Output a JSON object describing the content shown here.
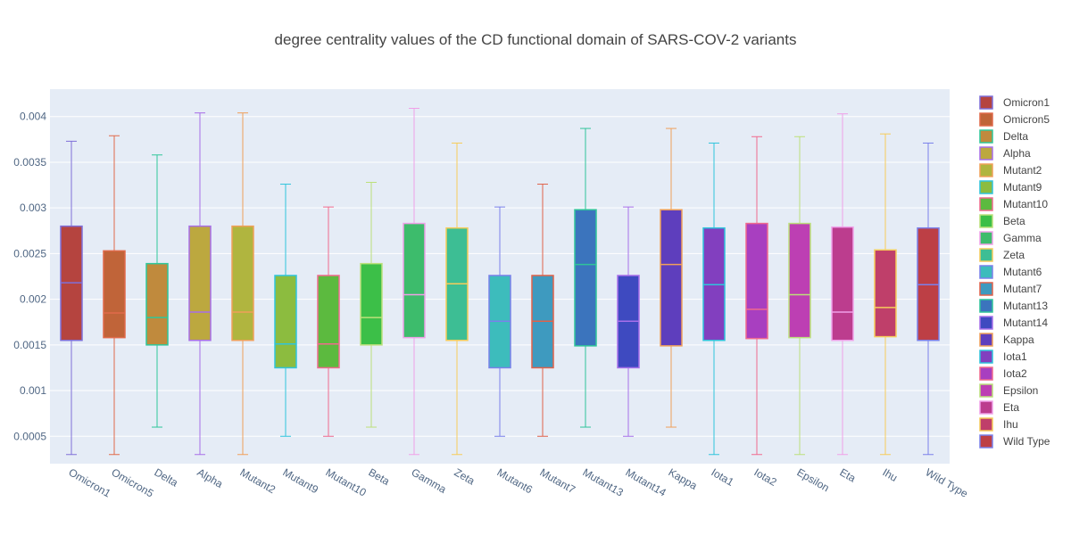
{
  "chart_data": {
    "type": "box",
    "title": "degree centrality values of the CD functional domain of SARS-COV-2 variants",
    "xlabel": "",
    "ylabel": "",
    "ylim": [
      0.0002,
      0.0043
    ],
    "y_ticks": [
      {
        "value": 0.0005,
        "label": "0.0005"
      },
      {
        "value": 0.001,
        "label": "0.001"
      },
      {
        "value": 0.0015,
        "label": "0.0015"
      },
      {
        "value": 0.002,
        "label": "0.002"
      },
      {
        "value": 0.0025,
        "label": "0.0025"
      },
      {
        "value": 0.003,
        "label": "0.003"
      },
      {
        "value": 0.0035,
        "label": "0.0035"
      },
      {
        "value": 0.004,
        "label": "0.004"
      }
    ],
    "grid": true,
    "legend_position": "right",
    "series": [
      {
        "name": "Omicron1",
        "min": 0.0003,
        "q1": 0.00155,
        "median": 0.00218,
        "q3": 0.0028,
        "max": 0.00373,
        "fill": "#b5443f",
        "line": "#7f6fd8"
      },
      {
        "name": "Omicron5",
        "min": 0.0003,
        "q1": 0.00158,
        "median": 0.00185,
        "q3": 0.00253,
        "max": 0.00379,
        "fill": "#c06439",
        "line": "#e06a4a"
      },
      {
        "name": "Delta",
        "min": 0.0006,
        "q1": 0.0015,
        "median": 0.0018,
        "q3": 0.00239,
        "max": 0.00358,
        "fill": "#c08a3d",
        "line": "#2fc79a"
      },
      {
        "name": "Alpha",
        "min": 0.0003,
        "q1": 0.00155,
        "median": 0.00186,
        "q3": 0.0028,
        "max": 0.00404,
        "fill": "#bca83f",
        "line": "#a86ee8"
      },
      {
        "name": "Mutant2",
        "min": 0.0003,
        "q1": 0.00155,
        "median": 0.00186,
        "q3": 0.0028,
        "max": 0.00404,
        "fill": "#b0b53f",
        "line": "#f0a05a"
      },
      {
        "name": "Mutant9",
        "min": 0.0005,
        "q1": 0.00125,
        "median": 0.00151,
        "q3": 0.00226,
        "max": 0.00326,
        "fill": "#8cbc3f",
        "line": "#2fc4dc"
      },
      {
        "name": "Mutant10",
        "min": 0.0005,
        "q1": 0.00125,
        "median": 0.00151,
        "q3": 0.00226,
        "max": 0.00301,
        "fill": "#5cba3f",
        "line": "#f06a8e"
      },
      {
        "name": "Beta",
        "min": 0.0006,
        "q1": 0.0015,
        "median": 0.0018,
        "q3": 0.00239,
        "max": 0.00328,
        "fill": "#3cbf48",
        "line": "#bce07a"
      },
      {
        "name": "Gamma",
        "min": 0.0003,
        "q1": 0.00158,
        "median": 0.00205,
        "q3": 0.00283,
        "max": 0.00409,
        "fill": "#3dbc6c",
        "line": "#f0a0e8"
      },
      {
        "name": "Zeta",
        "min": 0.0003,
        "q1": 0.00155,
        "median": 0.00217,
        "q3": 0.00278,
        "max": 0.00371,
        "fill": "#3dbe94",
        "line": "#f6cc5a"
      },
      {
        "name": "Mutant6",
        "min": 0.0005,
        "q1": 0.00125,
        "median": 0.00176,
        "q3": 0.00226,
        "max": 0.00301,
        "fill": "#3dbcbc",
        "line": "#7a80ea"
      },
      {
        "name": "Mutant7",
        "min": 0.0005,
        "q1": 0.00125,
        "median": 0.00176,
        "q3": 0.00226,
        "max": 0.00326,
        "fill": "#3e9abf",
        "line": "#e0624a"
      },
      {
        "name": "Mutant13",
        "min": 0.0006,
        "q1": 0.00149,
        "median": 0.00238,
        "q3": 0.00298,
        "max": 0.00387,
        "fill": "#3b74bd",
        "line": "#2fc49a"
      },
      {
        "name": "Mutant14",
        "min": 0.0005,
        "q1": 0.00125,
        "median": 0.00176,
        "q3": 0.00226,
        "max": 0.00301,
        "fill": "#3e4ac0",
        "line": "#a870ea"
      },
      {
        "name": "Kappa",
        "min": 0.0006,
        "q1": 0.00149,
        "median": 0.00238,
        "q3": 0.00298,
        "max": 0.00387,
        "fill": "#5e3ebd",
        "line": "#f0a05a"
      },
      {
        "name": "Iota1",
        "min": 0.0003,
        "q1": 0.00155,
        "median": 0.00216,
        "q3": 0.00278,
        "max": 0.00371,
        "fill": "#823fbf",
        "line": "#2fc4dc"
      },
      {
        "name": "Iota2",
        "min": 0.0003,
        "q1": 0.00157,
        "median": 0.00189,
        "q3": 0.00283,
        "max": 0.00378,
        "fill": "#a83fc0",
        "line": "#f06a8e"
      },
      {
        "name": "Epsilon",
        "min": 0.0003,
        "q1": 0.00158,
        "median": 0.00205,
        "q3": 0.00283,
        "max": 0.00378,
        "fill": "#bd3fb3",
        "line": "#bce07a"
      },
      {
        "name": "Eta",
        "min": 0.0003,
        "q1": 0.00155,
        "median": 0.00186,
        "q3": 0.00279,
        "max": 0.00403,
        "fill": "#bc3d8e",
        "line": "#f0a0e8"
      },
      {
        "name": "Ihu",
        "min": 0.0003,
        "q1": 0.00159,
        "median": 0.00191,
        "q3": 0.00254,
        "max": 0.00381,
        "fill": "#bf3f6a",
        "line": "#f6cc5a"
      },
      {
        "name": "Wild Type",
        "min": 0.0003,
        "q1": 0.00155,
        "median": 0.00216,
        "q3": 0.00278,
        "max": 0.00371,
        "fill": "#bd3f45",
        "line": "#7a80ea"
      }
    ]
  }
}
